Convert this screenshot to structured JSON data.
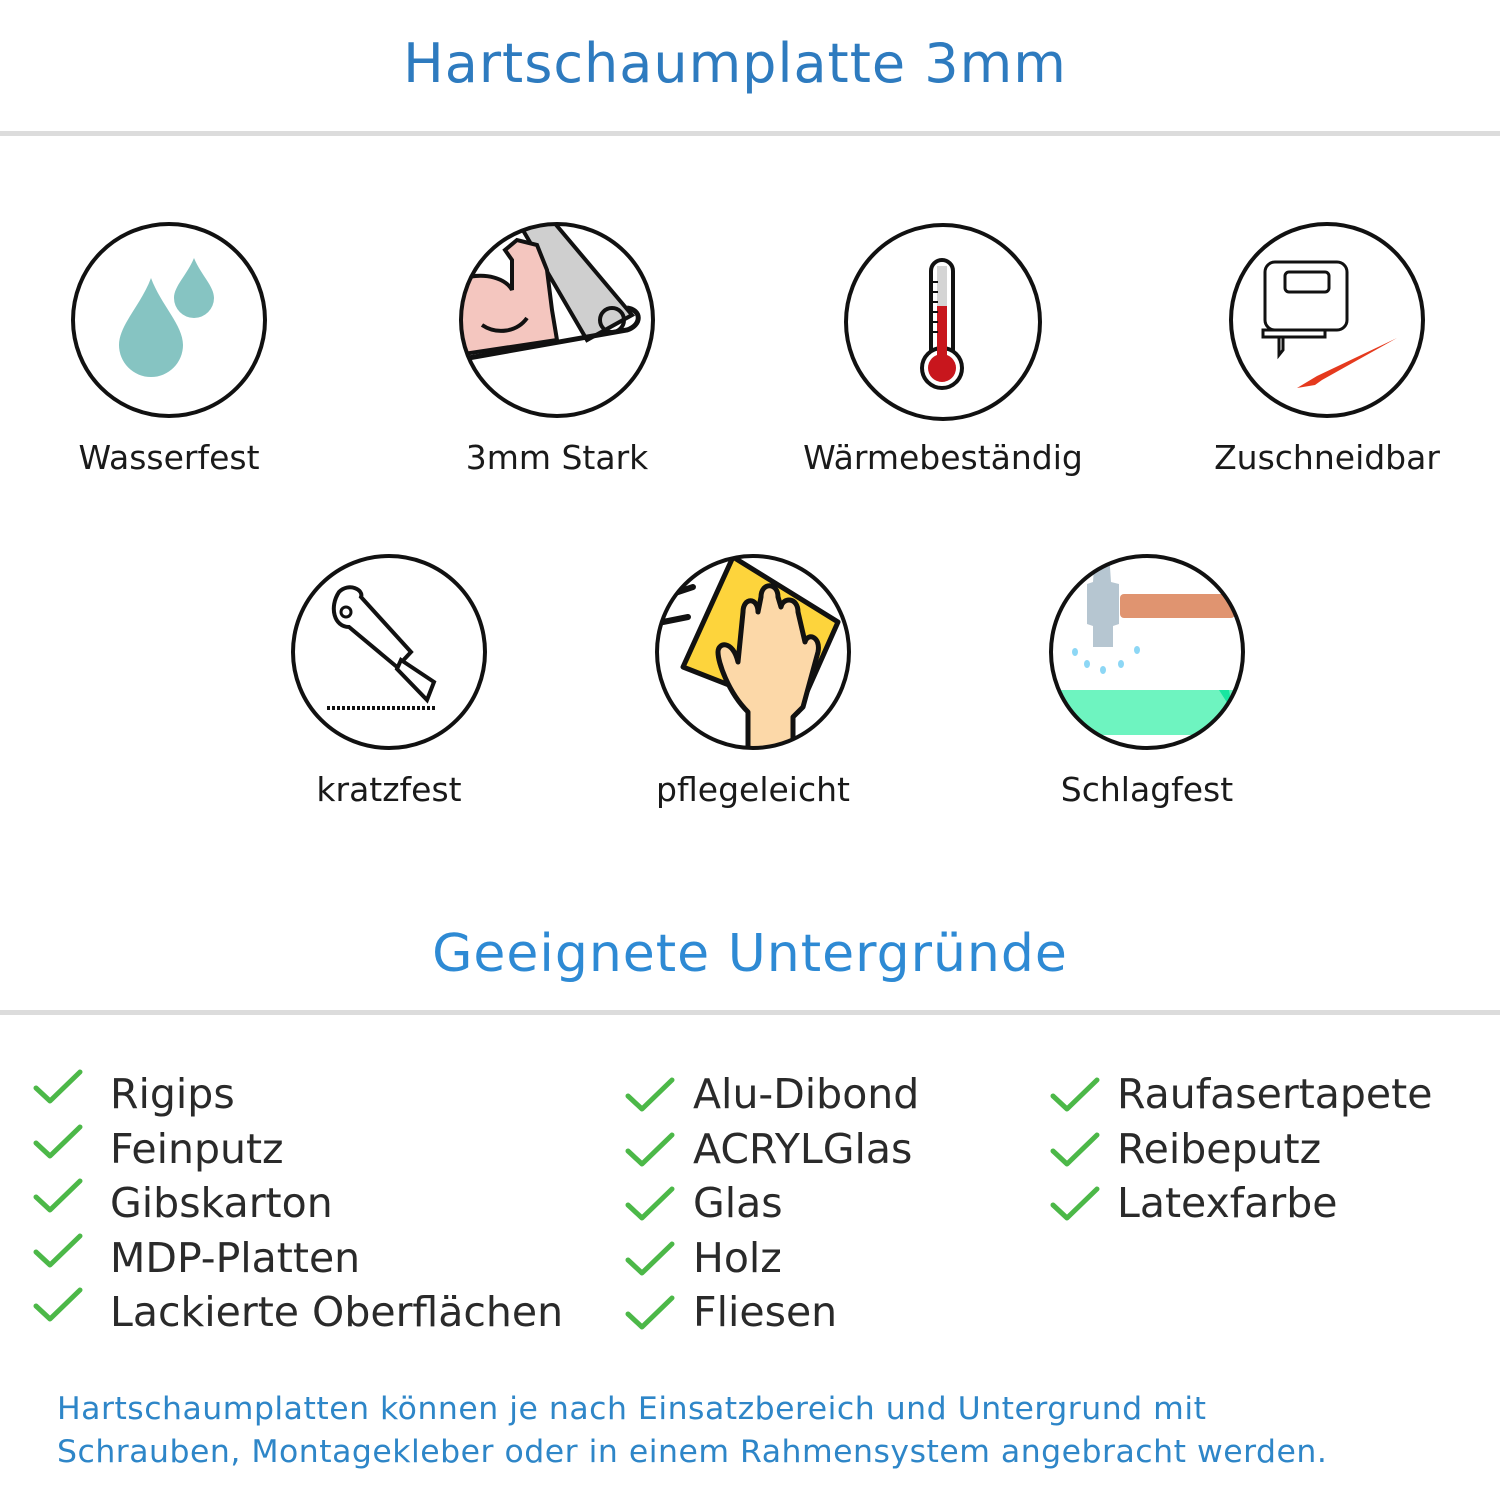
{
  "header": {
    "title": "Hartschaumplatte 3mm"
  },
  "features": [
    {
      "label": "Wasserfest",
      "icon": "water-drops-icon"
    },
    {
      "label": "3mm Stark",
      "icon": "strong-arm-icon"
    },
    {
      "label": "Wärmebeständig",
      "icon": "thermometer-icon"
    },
    {
      "label": "Zuschneidbar",
      "icon": "jigsaw-cutter-icon"
    },
    {
      "label": "kratzfest",
      "icon": "cutter-knife-icon"
    },
    {
      "label": "pflegeleicht",
      "icon": "hand-wiping-icon"
    },
    {
      "label": "Schlagfest",
      "icon": "hammer-icon"
    }
  ],
  "surfaces": {
    "title": "Geeignete Untergründe",
    "check_color": "#4cb848",
    "columns": [
      [
        "Rigips",
        "Feinputz",
        "Gibskarton",
        "MDP-Platten",
        "Lackierte Oberflächen"
      ],
      [
        "Alu-Dibond",
        "ACRYLGlas",
        "Glas",
        "Holz",
        "Fliesen"
      ],
      [
        "Raufasertapete",
        "Reibeputz",
        "Latexfarbe"
      ]
    ]
  },
  "footer": {
    "line1": "Hartschaumplatten können je nach Einsatzbereich und Untergrund mit",
    "line2": "Schrauben, Montagekleber oder in einem Rahmensystem angebracht werden."
  },
  "colors": {
    "title": "#2e7bbf",
    "section_title": "#2e8ad4",
    "footer": "#2e86c8"
  }
}
